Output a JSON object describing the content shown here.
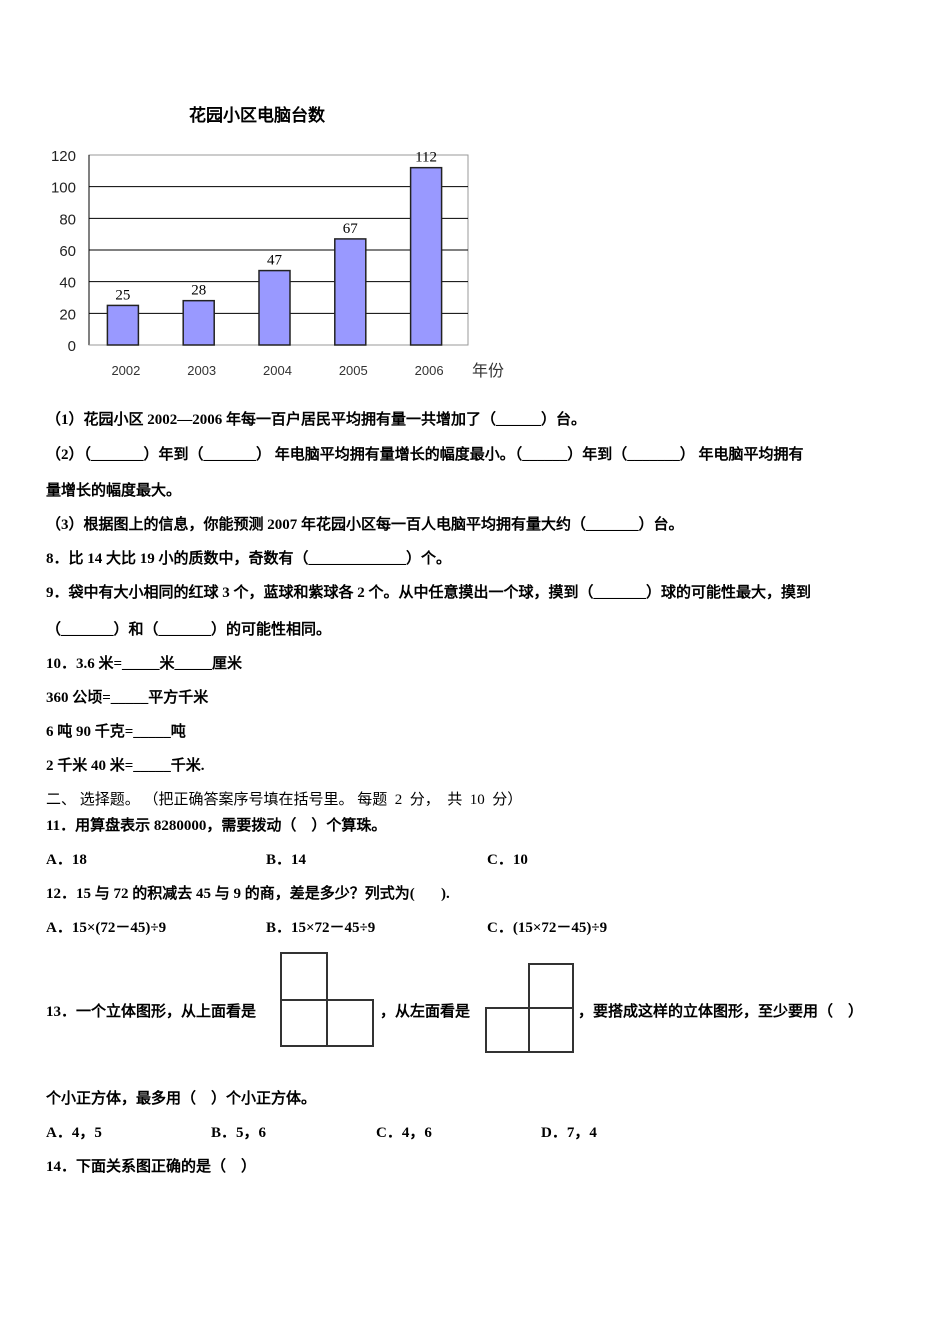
{
  "chart_data": {
    "type": "bar",
    "title": "花园小区电脑台数",
    "categories": [
      "2002",
      "2003",
      "2004",
      "2005",
      "2006"
    ],
    "values": [
      25,
      28,
      47,
      67,
      112
    ],
    "data_labels": [
      "25",
      "28",
      "47",
      "67",
      "112"
    ],
    "xlabel": "年份",
    "ylabel": "",
    "ylim": [
      0,
      120
    ],
    "yticks": [
      "0",
      "20",
      "40",
      "60",
      "80",
      "100",
      "120"
    ],
    "grid": true,
    "bar_color": "#9999ff"
  },
  "questions": {
    "q7_1": "（1）花园小区 2002—2006 年每一百户居民平均拥有量一共增加了（______）台。",
    "q7_2a": "（2）（_______）年到（_______） 年电脑平均拥有量增长的幅度最小。（______）年到（_______） 年电脑平均拥有",
    "q7_2b": "量增长的幅度最大。",
    "q7_3": "（3）根据图上的信息，你能预测 2007 年花园小区每一百人电脑平均拥有量大约（_______）台。",
    "q8": "8．比 14 大比 19 小的质数中，奇数有（_____________）个。",
    "q9a": "9．袋中有大小相同的红球 3 个，蓝球和紫球各 2 个。从中任意摸出一个球，摸到（_______）球的可能性最大，摸到",
    "q9b": "（_______）和（_______）的可能性相同。",
    "q10a": "10．3.6 米=_____米_____厘米",
    "q10b": "360 公顷=_____平方千米",
    "q10c": "6 吨 90 千克=_____吨",
    "q10d": "2 千米 40 米=_____千米.",
    "section2": "二、 选择题。 （把正确答案序号填在括号里。 每题  2  分，  共  10  分）",
    "q11": "11．用算盘表示 8280000，需要拨动（    ）个算珠。",
    "q11_opts": [
      "A．18",
      "B．14",
      "C．10"
    ],
    "q12": "12．15 与 72 的积减去 45 与 9 的商，差是多少？列式为(       ).",
    "q12_opts": [
      "A．15×(72－45)÷9",
      "B．15×72－45÷9",
      "C．(15×72－45)÷9"
    ],
    "q13a": "13．一个立体图形，从上面看是",
    "q13b": "，从左面看是",
    "q13c": "，要搭成这样的立体图形，至少要用（    ）",
    "q13d": "个小正方体，最多用（    ）个小正方体。",
    "q13_opts": [
      "A．4，5",
      "B．5，6",
      "C．4，6",
      "D．7，4"
    ],
    "q14": "14．下面关系图正确的是（    ）"
  }
}
